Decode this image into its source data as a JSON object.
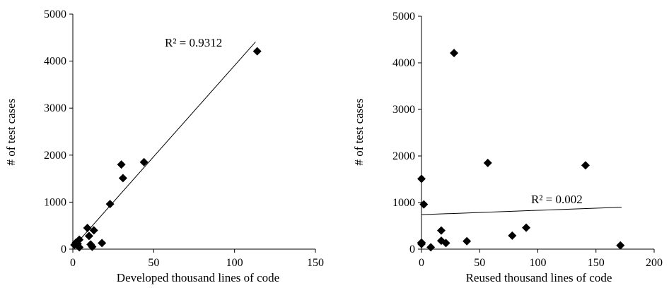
{
  "chart_data": [
    {
      "type": "scatter",
      "xlabel": "Developed thousand lines of code",
      "ylabel": "# of test cases",
      "xlim": [
        0,
        150
      ],
      "ylim": [
        0,
        5000
      ],
      "xticks": [
        "0",
        "50",
        "100",
        "150"
      ],
      "yticks": [
        "0",
        "1000",
        "2000",
        "3000",
        "4000",
        "5000"
      ],
      "grid": false,
      "legend": "none",
      "marker_color": "#000000",
      "points": [
        {
          "x": 1,
          "y": 90
        },
        {
          "x": 2,
          "y": 140
        },
        {
          "x": 3,
          "y": 110
        },
        {
          "x": 4,
          "y": 200
        },
        {
          "x": 4,
          "y": 40
        },
        {
          "x": 9,
          "y": 450
        },
        {
          "x": 10,
          "y": 280
        },
        {
          "x": 11,
          "y": 100
        },
        {
          "x": 12,
          "y": 50
        },
        {
          "x": 13,
          "y": 400
        },
        {
          "x": 18,
          "y": 130
        },
        {
          "x": 23,
          "y": 960
        },
        {
          "x": 30,
          "y": 1800
        },
        {
          "x": 31,
          "y": 1510
        },
        {
          "x": 44,
          "y": 1850
        },
        {
          "x": 114,
          "y": 4210
        }
      ],
      "trendline": {
        "x": [
          1,
          113
        ],
        "y": [
          70,
          4410
        ]
      },
      "r2_label": "R² = 0.9312"
    },
    {
      "type": "scatter",
      "xlabel": "Reused thousand lines of code",
      "ylabel": "# of test cases",
      "xlim": [
        0,
        200
      ],
      "ylim": [
        0,
        5000
      ],
      "xticks": [
        "0",
        "50",
        "100",
        "150",
        "200"
      ],
      "yticks": [
        "0",
        "1000",
        "2000",
        "3000",
        "4000",
        "5000"
      ],
      "grid": false,
      "legend": "none",
      "marker_color": "#000000",
      "points": [
        {
          "x": 0,
          "y": 1510
        },
        {
          "x": 0,
          "y": 140
        },
        {
          "x": 0,
          "y": 110
        },
        {
          "x": 2,
          "y": 960
        },
        {
          "x": 8,
          "y": 40
        },
        {
          "x": 17,
          "y": 400
        },
        {
          "x": 17,
          "y": 180
        },
        {
          "x": 21,
          "y": 130
        },
        {
          "x": 28,
          "y": 4210
        },
        {
          "x": 39,
          "y": 170
        },
        {
          "x": 57,
          "y": 1850
        },
        {
          "x": 78,
          "y": 290
        },
        {
          "x": 90,
          "y": 460
        },
        {
          "x": 141,
          "y": 1800
        },
        {
          "x": 171,
          "y": 80
        }
      ],
      "trendline": {
        "x": [
          0,
          172
        ],
        "y": [
          740,
          900
        ]
      },
      "r2_label": "R² = 0.002"
    }
  ]
}
